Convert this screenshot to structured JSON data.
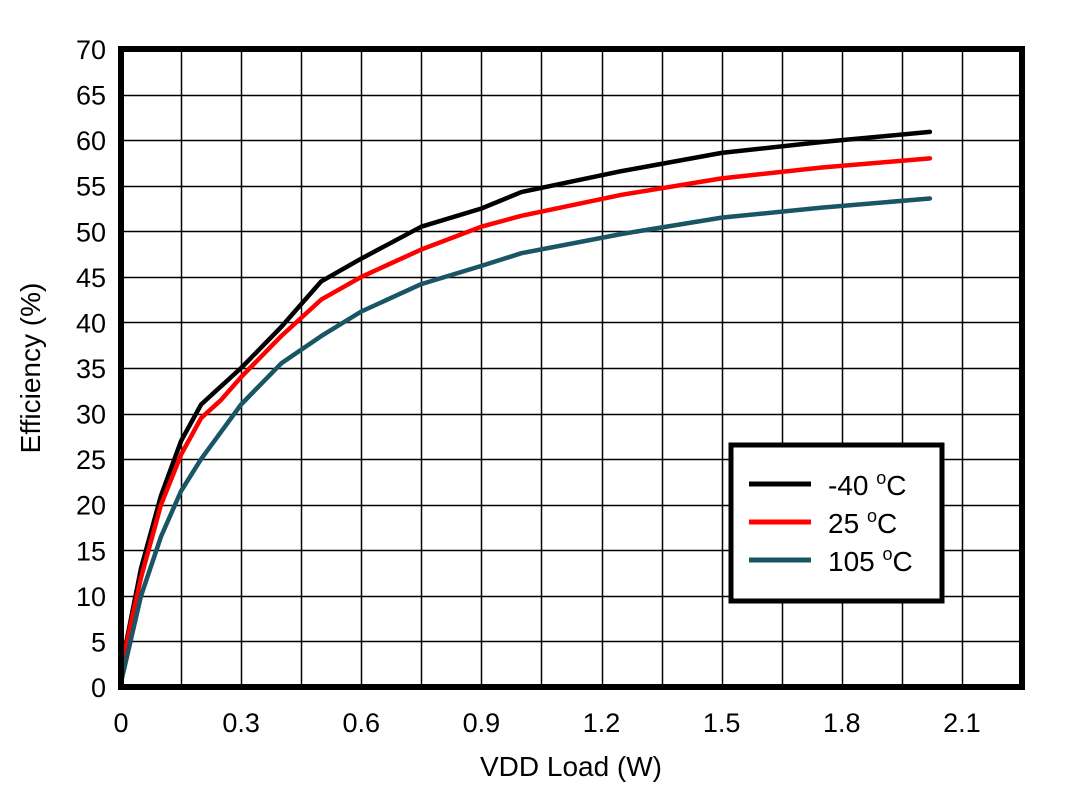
{
  "chart_data": {
    "type": "line",
    "title": "",
    "xlabel": "VDD Load (W)",
    "ylabel": "Efficiency (%)",
    "xlim": [
      0,
      2.25
    ],
    "ylim": [
      0,
      70
    ],
    "xticks": [
      0,
      0.3,
      0.6,
      0.9,
      1.2,
      1.5,
      1.8,
      2.1
    ],
    "xtick_labels": [
      "0",
      "0.3",
      "0.6",
      "0.9",
      "1.2",
      "1.5",
      "1.8",
      "2.1"
    ],
    "yticks": [
      0,
      5,
      10,
      15,
      20,
      25,
      30,
      35,
      40,
      45,
      50,
      55,
      60,
      65,
      70
    ],
    "ytick_labels": [
      "0",
      "5",
      "10",
      "15",
      "20",
      "25",
      "30",
      "35",
      "40",
      "45",
      "50",
      "55",
      "60",
      "65",
      "70"
    ],
    "x_grid_step": 0.15,
    "y_grid_step": 5,
    "grid": true,
    "legend_position": "lower right (inside plot)",
    "series": [
      {
        "name": "-40 °C",
        "label_main": "-40 ",
        "label_sup": "o",
        "label_unit": "C",
        "color": "#000000",
        "x": [
          0,
          0.05,
          0.1,
          0.15,
          0.2,
          0.25,
          0.3,
          0.4,
          0.5,
          0.6,
          0.75,
          0.9,
          1.0,
          1.25,
          1.5,
          1.75,
          2.02
        ],
        "y": [
          2,
          13,
          21,
          27,
          31,
          33,
          35,
          39.5,
          44.5,
          47,
          50.5,
          52.5,
          54.3,
          56.6,
          58.6,
          59.8,
          60.9
        ]
      },
      {
        "name": "25 °C",
        "label_main": "25 ",
        "label_sup": "o",
        "label_unit": "C",
        "color": "#ff0000",
        "x": [
          0,
          0.05,
          0.1,
          0.15,
          0.2,
          0.25,
          0.3,
          0.4,
          0.5,
          0.6,
          0.75,
          0.9,
          1.0,
          1.25,
          1.5,
          1.75,
          2.02
        ],
        "y": [
          2,
          12,
          20,
          25.5,
          29.5,
          31.5,
          34,
          38.5,
          42.5,
          45,
          48,
          50.5,
          51.7,
          54,
          55.8,
          57,
          58
        ]
      },
      {
        "name": "105 °C",
        "label_main": "105 ",
        "label_sup": "o",
        "label_unit": "C",
        "color": "#1a5566",
        "x": [
          0,
          0.05,
          0.1,
          0.15,
          0.2,
          0.25,
          0.3,
          0.4,
          0.5,
          0.6,
          0.75,
          0.9,
          1.0,
          1.25,
          1.5,
          1.75,
          2.02
        ],
        "y": [
          0.5,
          10,
          16.5,
          21.5,
          25,
          28,
          31,
          35.5,
          38.5,
          41.2,
          44.2,
          46.2,
          47.6,
          49.7,
          51.5,
          52.6,
          53.6
        ]
      }
    ]
  }
}
